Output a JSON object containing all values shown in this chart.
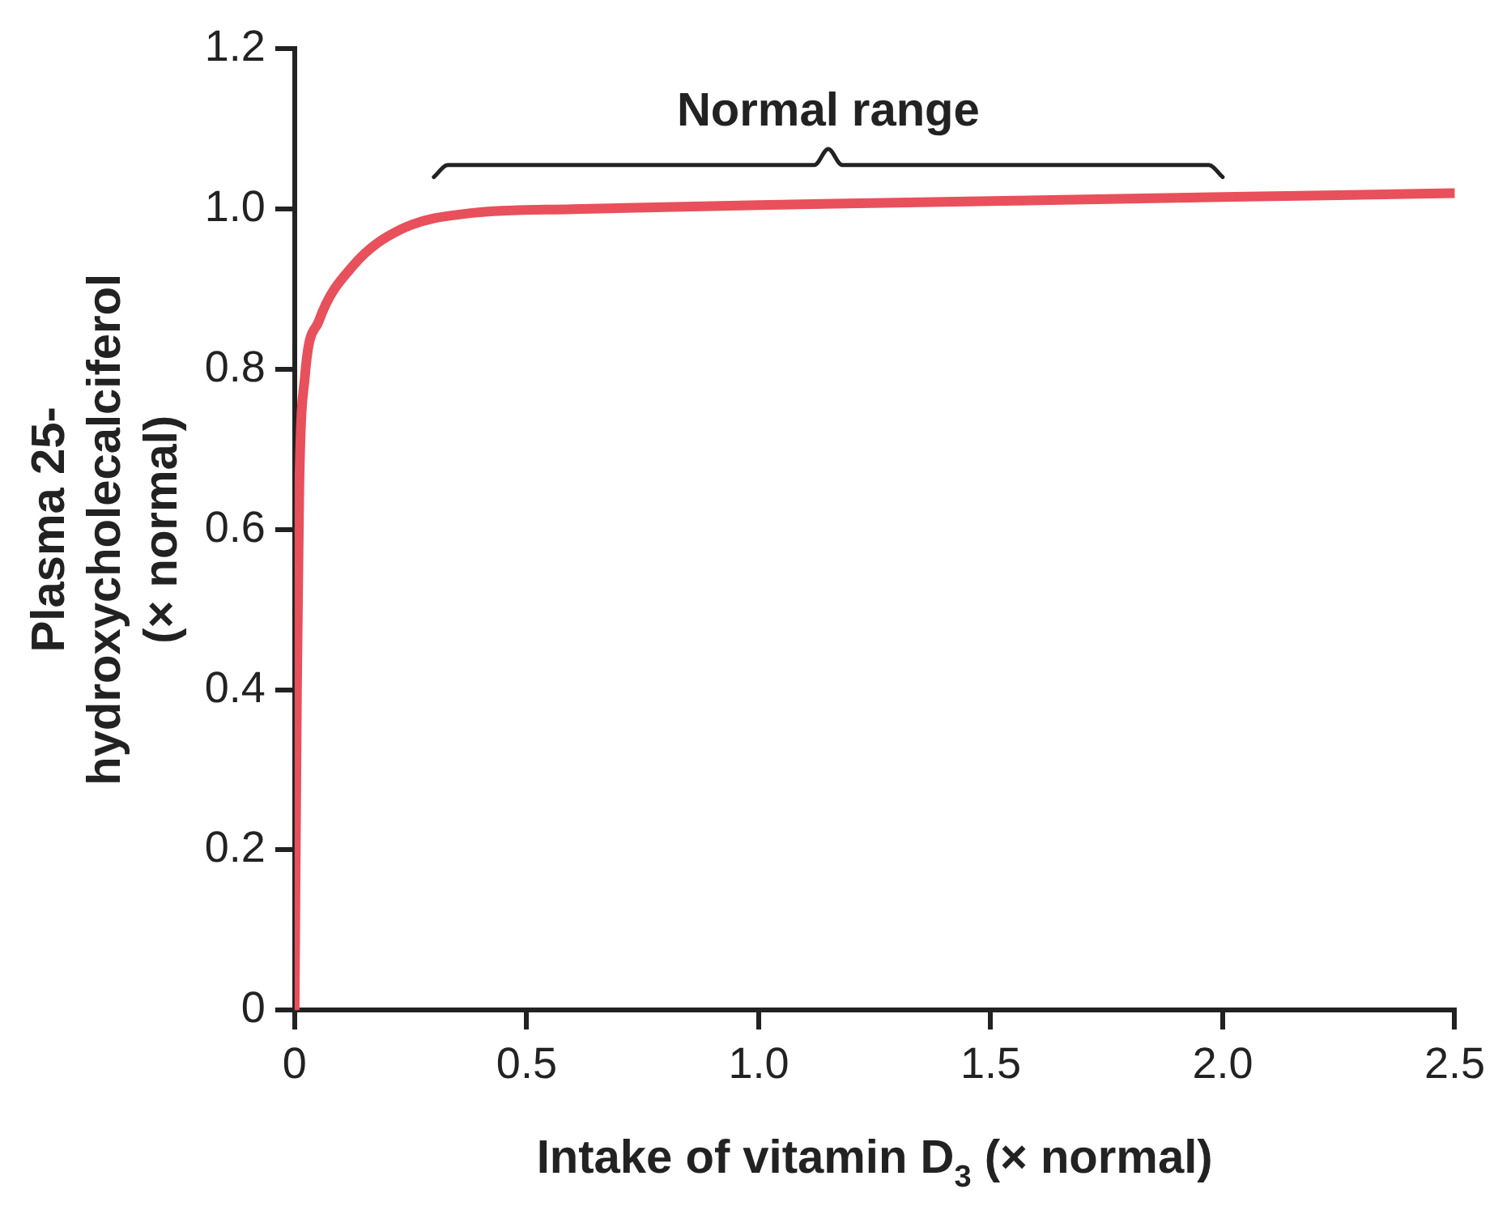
{
  "chart_data": {
    "type": "line",
    "xlabel": "Intake of vitamin D$_{3}$ (× normal)",
    "ylabel": "Plasma 25-hydroxycholecalciferol (× normal)",
    "x": [
      0,
      0.005,
      0.01,
      0.022,
      0.052,
      0.127,
      0.23,
      0.38,
      0.6,
      1.0,
      1.5,
      2.0,
      2.5
    ],
    "series": [
      {
        "color": "#e8505b",
        "values": [
          0,
          0.4,
          0.65,
          0.79,
          0.86,
          0.93,
          0.975,
          0.995,
          1.0,
          1.005,
          1.01,
          1.015,
          1.02
        ]
      },
      {
        "color": "#222222",
        "x": [
          0.3,
          0.33,
          1.12,
          1.15,
          1.18,
          1.97,
          2.0
        ],
        "values": [
          1.04,
          1.055,
          1.055,
          1.075,
          1.055,
          1.055,
          1.04
        ]
      }
    ],
    "annotations": [
      "Normal range"
    ],
    "xlim": [
      0,
      2.5
    ],
    "ylim": [
      0,
      1.2
    ],
    "xticks": [
      0,
      0.5,
      {
        "value": 1,
        "label": "1.0"
      },
      1.5,
      {
        "value": 2,
        "label": "2.0"
      },
      2.5
    ],
    "yticks": [
      0,
      0.2,
      0.4,
      0.6,
      0.8,
      {
        "value": 1,
        "label": "1.0"
      },
      1.2
    ],
    "grid": false,
    "legend": false,
    "marker": "none",
    "line_style": "solid"
  }
}
